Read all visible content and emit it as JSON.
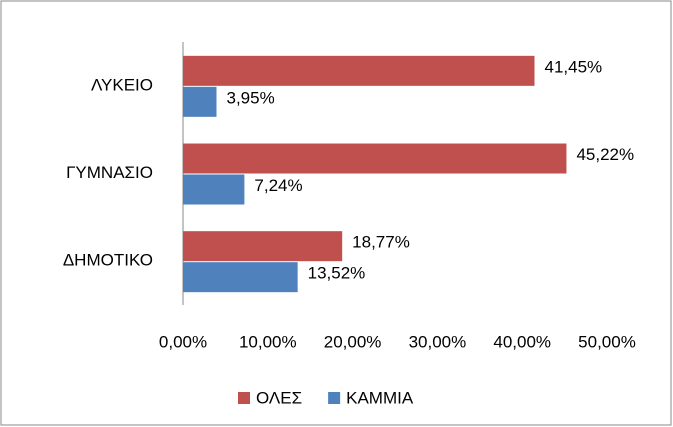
{
  "chart_data": {
    "type": "hbar",
    "categories": [
      "ΛΥΚΕΙΟ",
      "ΓΥΜΝΑΣΙΟ",
      "ΔΗΜΟΤΙΚΟ"
    ],
    "series": [
      {
        "name": "ΟΛΕΣ",
        "color": "#c0504d",
        "values": [
          41.45,
          45.22,
          18.77
        ],
        "value_labels": [
          "41,45%",
          "45,22%",
          "18,77%"
        ]
      },
      {
        "name": "ΚΑΜΜΙΑ",
        "color": "#4f81bd",
        "values": [
          3.95,
          7.24,
          13.52
        ],
        "value_labels": [
          "3,95%",
          "7,24%",
          "13,52%"
        ]
      }
    ],
    "xlim": [
      0,
      50
    ],
    "xticks": [
      {
        "value": 0,
        "label": "0,00%"
      },
      {
        "value": 10,
        "label": "10,00%"
      },
      {
        "value": 20,
        "label": "20,00%"
      },
      {
        "value": 30,
        "label": "30,00%"
      },
      {
        "value": 40,
        "label": "40,00%"
      },
      {
        "value": 50,
        "label": "50,00%"
      }
    ],
    "grid": false,
    "legend": "bottom"
  }
}
